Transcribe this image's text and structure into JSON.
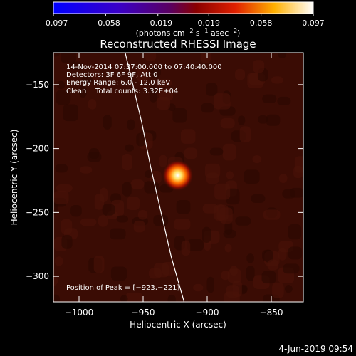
{
  "chart_data": {
    "type": "heatmap",
    "title": "Reconstructed RHESSI Image",
    "xlabel": "Heliocentric X (arcsec)",
    "ylabel": "Heliocentric Y (arcsec)",
    "xlim": [
      -1020,
      -825
    ],
    "ylim": [
      -320,
      -125
    ],
    "xticks": [
      -1000,
      -950,
      -900,
      -850
    ],
    "yticks": [
      -150,
      -200,
      -250,
      -300
    ],
    "colorbar": {
      "ticks": [
        -0.097,
        -0.058,
        -0.019,
        0.019,
        0.058,
        0.097
      ],
      "tick_labels": [
        "−0.097",
        "−0.058",
        "−0.019",
        "0.019",
        "0.058",
        "0.097"
      ],
      "units_prefix": "(photons cm",
      "units_exp1": "−2",
      "units_mid": " s",
      "units_exp2": "−1",
      "units_mid2": " asec",
      "units_exp3": "−2",
      "units_suffix": ")"
    },
    "annotations": [
      "14-Nov-2014 07:37:00.000 to 07:40:40.000",
      "Detectors: 3F 6F 9F, Att 0",
      "Energy Range: 6.0 - 12.0 keV",
      "Clean    Total counts: 3.32E+04"
    ],
    "peak_label": "Position of Peak = [−923,−221]",
    "peak": {
      "x": -923,
      "y": -221
    },
    "limb_curve": [
      {
        "x": -964,
        "y": -125
      },
      {
        "x": -958,
        "y": -150
      },
      {
        "x": -951,
        "y": -180
      },
      {
        "x": -944,
        "y": -215
      },
      {
        "x": -936,
        "y": -250
      },
      {
        "x": -928,
        "y": -285
      },
      {
        "x": -918,
        "y": -320
      }
    ]
  },
  "footer": {
    "timestamp": "4-Jun-2019 09:54"
  },
  "colors": {
    "background": "#000000",
    "foreground": "#ffffff",
    "image_background": "#3a0c04"
  }
}
